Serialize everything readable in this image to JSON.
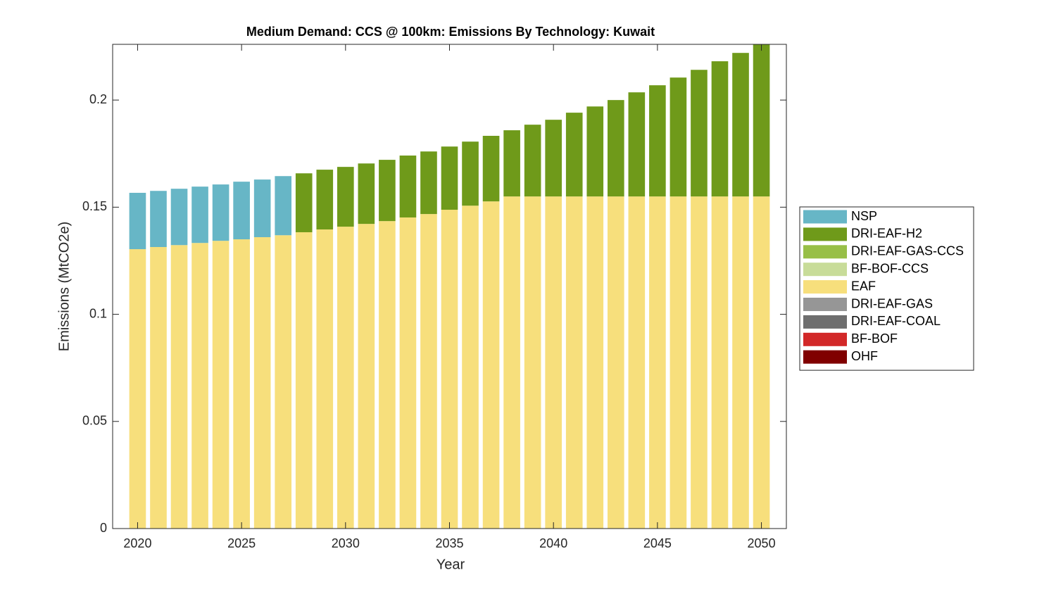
{
  "chart_data": {
    "type": "stacked-bar",
    "title": "Medium Demand: CCS @ 100km: Emissions By Technology: Kuwait",
    "x_label": "Year",
    "y_label": "Emissions (MtCO2e)",
    "x": [
      2020,
      2021,
      2022,
      2023,
      2024,
      2025,
      2026,
      2027,
      2028,
      2029,
      2030,
      2031,
      2032,
      2033,
      2034,
      2035,
      2036,
      2037,
      2038,
      2039,
      2040,
      2041,
      2042,
      2043,
      2044,
      2045,
      2046,
      2047,
      2048,
      2049,
      2050
    ],
    "xlim": [
      2018.8,
      2051.2
    ],
    "xticks": [
      2020,
      2025,
      2030,
      2035,
      2040,
      2045,
      2050
    ],
    "ylim": [
      0,
      0.226
    ],
    "yticks": [
      0,
      0.05,
      0.1,
      0.15,
      0.2
    ],
    "grid": false,
    "legend": "outside-right",
    "series": [
      {
        "name": "NSP",
        "color": "#67b6c6",
        "values": [
          0.0263,
          0.0262,
          0.0263,
          0.0263,
          0.0263,
          0.0269,
          0.0269,
          0.0276,
          0,
          0,
          0,
          0,
          0,
          0,
          0,
          0,
          0,
          0,
          0,
          0,
          0,
          0,
          0,
          0,
          0,
          0,
          0,
          0,
          0,
          0,
          0
        ]
      },
      {
        "name": "DRI-EAF-H2",
        "color": "#6f9a1a",
        "values": [
          0,
          0,
          0,
          0,
          0,
          0,
          0,
          0,
          0.0275,
          0.0279,
          0.0279,
          0.0282,
          0.0286,
          0.0289,
          0.0292,
          0.0295,
          0.0299,
          0.0306,
          0.0309,
          0.0335,
          0.0358,
          0.0391,
          0.042,
          0.045,
          0.0486,
          0.0519,
          0.0555,
          0.0591,
          0.0631,
          0.067,
          0.0709
        ]
      },
      {
        "name": "DRI-EAF-GAS-CCS",
        "color": "#98bf47",
        "values": [
          0,
          0,
          0,
          0,
          0,
          0,
          0,
          0,
          0,
          0,
          0,
          0,
          0,
          0,
          0,
          0,
          0,
          0,
          0,
          0,
          0,
          0,
          0,
          0,
          0,
          0,
          0,
          0,
          0,
          0,
          0
        ]
      },
      {
        "name": "BF-BOF-CCS",
        "color": "#c8dc99",
        "values": [
          0,
          0,
          0,
          0,
          0,
          0,
          0,
          0,
          0,
          0,
          0,
          0,
          0,
          0,
          0,
          0,
          0,
          0,
          0,
          0,
          0,
          0,
          0,
          0,
          0,
          0,
          0,
          0,
          0,
          0,
          0
        ]
      },
      {
        "name": "EAF",
        "color": "#f7df7c",
        "values": [
          0.1304,
          0.1314,
          0.1323,
          0.1333,
          0.1343,
          0.135,
          0.136,
          0.1369,
          0.1383,
          0.1396,
          0.1409,
          0.1422,
          0.1435,
          0.1452,
          0.1468,
          0.1488,
          0.1507,
          0.1527,
          0.155,
          0.155,
          0.155,
          0.155,
          0.155,
          0.155,
          0.155,
          0.155,
          0.155,
          0.155,
          0.155,
          0.155,
          0.155
        ]
      },
      {
        "name": "DRI-EAF-GAS",
        "color": "#969696",
        "values": [
          0,
          0,
          0,
          0,
          0,
          0,
          0,
          0,
          0,
          0,
          0,
          0,
          0,
          0,
          0,
          0,
          0,
          0,
          0,
          0,
          0,
          0,
          0,
          0,
          0,
          0,
          0,
          0,
          0,
          0,
          0
        ]
      },
      {
        "name": "DRI-EAF-COAL",
        "color": "#6e6e6e",
        "values": [
          0,
          0,
          0,
          0,
          0,
          0,
          0,
          0,
          0,
          0,
          0,
          0,
          0,
          0,
          0,
          0,
          0,
          0,
          0,
          0,
          0,
          0,
          0,
          0,
          0,
          0,
          0,
          0,
          0,
          0,
          0
        ]
      },
      {
        "name": "BF-BOF",
        "color": "#d22828",
        "values": [
          0,
          0,
          0,
          0,
          0,
          0,
          0,
          0,
          0,
          0,
          0,
          0,
          0,
          0,
          0,
          0,
          0,
          0,
          0,
          0,
          0,
          0,
          0,
          0,
          0,
          0,
          0,
          0,
          0,
          0,
          0
        ]
      },
      {
        "name": "OHF",
        "color": "#800000",
        "values": [
          0,
          0,
          0,
          0,
          0,
          0,
          0,
          0,
          0,
          0,
          0,
          0,
          0,
          0,
          0,
          0,
          0,
          0,
          0,
          0,
          0,
          0,
          0,
          0,
          0,
          0,
          0,
          0,
          0,
          0,
          0
        ]
      }
    ]
  }
}
